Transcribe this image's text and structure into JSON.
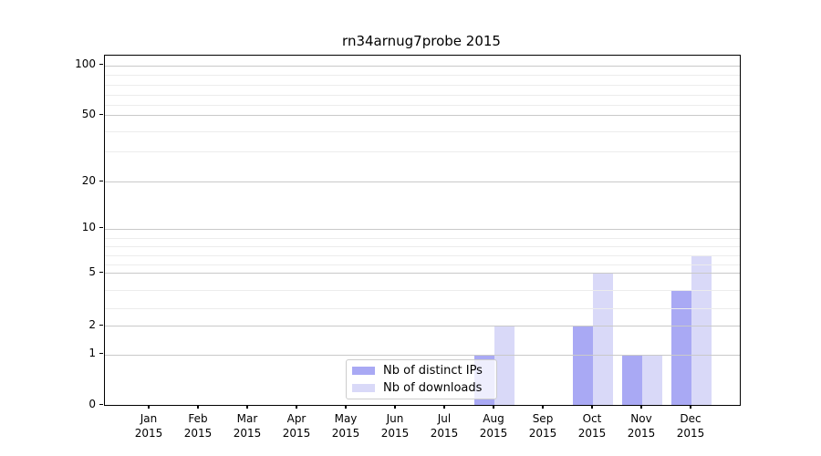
{
  "title": "rn34arnug7probe 2015",
  "chart_data": {
    "type": "bar",
    "title": "rn34arnug7probe 2015",
    "categories": [
      "Jan 2015",
      "Feb 2015",
      "Mar 2015",
      "Apr 2015",
      "May 2015",
      "Jun 2015",
      "Jul 2015",
      "Aug 2015",
      "Sep 2015",
      "Oct 2015",
      "Nov 2015",
      "Dec 2015"
    ],
    "series": [
      {
        "name": "Nb of distinct IPs",
        "color": "#a9a9f4",
        "values": [
          0,
          0,
          0,
          0,
          0,
          0,
          0,
          1,
          0,
          2,
          1,
          4
        ]
      },
      {
        "name": "Nb of downloads",
        "color": "#d9d9f8",
        "values": [
          0,
          0,
          0,
          0,
          0,
          0,
          0,
          2,
          0,
          5,
          1,
          7
        ]
      }
    ],
    "xlabel": "",
    "ylabel": "",
    "y_axis": {
      "scale": "log-like",
      "range": [
        0,
        100
      ],
      "major_ticks": [
        0,
        1,
        2,
        5,
        10,
        20,
        50,
        100
      ],
      "major_tick_labels": [
        "0",
        "1",
        "2",
        "5",
        "10",
        "20",
        "50",
        "100"
      ],
      "minor_ticks": [
        3,
        4,
        6,
        7,
        8,
        9,
        30,
        40,
        60,
        70,
        80,
        90
      ]
    },
    "grid": "on",
    "legend": {
      "position": "lower center, inside plot",
      "entries": [
        {
          "label": "Nb of distinct IPs",
          "color": "#a9a9f4"
        },
        {
          "label": "Nb of downloads",
          "color": "#d9d9f8"
        }
      ]
    }
  },
  "colors": {
    "background": "#ffffff",
    "text": "#000000",
    "spine": "#000000",
    "major_grid": "#c9c9c9",
    "minor_grid": "#ececec",
    "series_distinct_ips": "#a9a9f4",
    "series_downloads": "#d9d9f8",
    "legend_border": "#cccccc"
  }
}
